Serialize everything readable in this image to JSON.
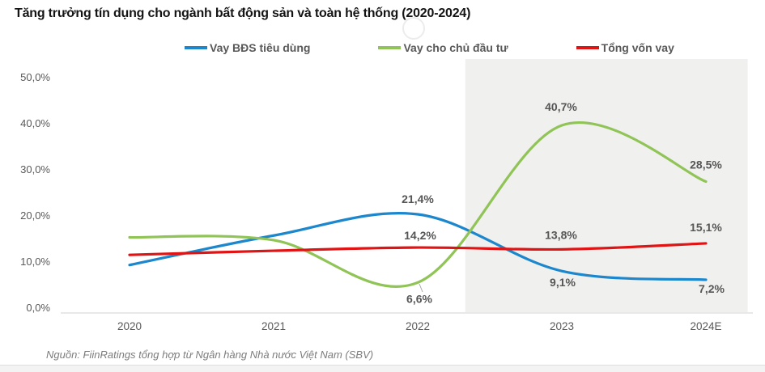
{
  "header": {
    "title": "Tăng trưởng tín dụng cho ngành bất động sản và toàn hệ thống (2020-2024)"
  },
  "source": {
    "text": "Nguồn: FiinRatings tổng hợp từ Ngân hàng Nhà nước Việt Nam (SBV)"
  },
  "colors": {
    "consumer_loans_blue": "#1c87cd",
    "developer_loans_green": "#90c456",
    "total_loans_red": "#e01414",
    "highlight_band_gray": "#f0f0ef",
    "axis_line": "#d9d9d9",
    "label_gray": "#595959"
  },
  "chart_data": {
    "type": "line",
    "smooth": true,
    "title": "Tăng trưởng tín dụng cho ngành bất động sản và toàn hệ thống (2020-2024)",
    "categories": [
      "2020",
      "2021",
      "2022",
      "2023",
      "2024E"
    ],
    "y_axis": {
      "min": 0,
      "max": 50,
      "grid": false,
      "tick_labels_top_to_bottom": [
        "50,0%",
        "40,0%",
        "30,0%",
        "20,0%",
        "10,0%",
        "0,0%"
      ]
    },
    "legend_position": "top",
    "highlight_band": {
      "from_category_fraction": 2.33,
      "to_category_fraction": 4.29
    },
    "series": [
      {
        "name": "Vay BĐS tiêu dùng",
        "color": "#1c87cd",
        "values": [
          10.4,
          16.8,
          21.4,
          9.1,
          7.2
        ],
        "point_labels": [
          "",
          "",
          "21,4%",
          "9,1%",
          "7,2%"
        ]
      },
      {
        "name": "Vay cho chủ đầu tư",
        "color": "#90c456",
        "values": [
          16.4,
          15.8,
          6.6,
          40.7,
          28.5
        ],
        "point_labels": [
          "",
          "",
          "6,6%",
          "40,7%",
          "28,5%"
        ]
      },
      {
        "name": "Tổng vốn vay",
        "color": "#e01414",
        "values": [
          12.6,
          13.5,
          14.2,
          13.8,
          15.1
        ],
        "point_labels": [
          "",
          "",
          "14,2%",
          "13,8%",
          "15,1%"
        ]
      }
    ]
  }
}
